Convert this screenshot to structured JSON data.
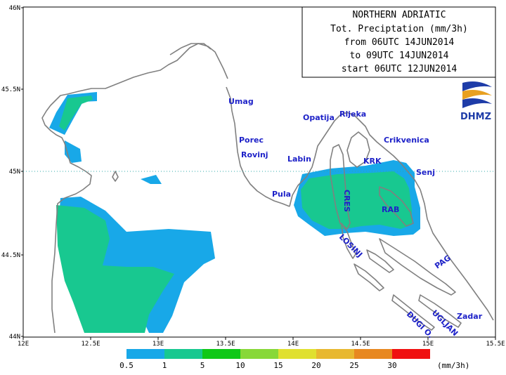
{
  "map": {
    "title_lines": [
      "NORTHERN ADRIATIC",
      "Tot. Preciptation (mm/3h)",
      "from 06UTC 14JUN2014",
      "to 09UTC 14JUN2014",
      "start 06UTC 12JUN2014"
    ],
    "logo_text": "DHMZ",
    "lat_ticks": [
      "46N",
      "45.5N",
      "45N",
      "44.5N",
      "44N"
    ],
    "lon_ticks": [
      "12E",
      "12.5E",
      "13E",
      "13.5E",
      "14E",
      "14.5E",
      "15E",
      "15.5E"
    ],
    "places": [
      {
        "id": "umag",
        "name": "Umag",
        "color": "#1e22c8"
      },
      {
        "id": "porec",
        "name": "Porec",
        "color": "#1e22c8"
      },
      {
        "id": "rovinj",
        "name": "Rovinj",
        "color": "#1e22c8"
      },
      {
        "id": "pula",
        "name": "Pula",
        "color": "#1e22c8"
      },
      {
        "id": "labin",
        "name": "Labin",
        "color": "#1e22c8"
      },
      {
        "id": "opatija",
        "name": "Opatija",
        "color": "#1e22c8"
      },
      {
        "id": "rijeka",
        "name": "Rijeka",
        "color": "#1e22c8"
      },
      {
        "id": "crikvenica",
        "name": "Crikvenica",
        "color": "#1e22c8"
      },
      {
        "id": "krk",
        "name": "KRK",
        "color": "#1e22c8"
      },
      {
        "id": "senj",
        "name": "Senj",
        "color": "#1e22c8"
      },
      {
        "id": "cres",
        "name": "CRES",
        "color": "#1e22c8"
      },
      {
        "id": "rab",
        "name": "RAB",
        "color": "#1e22c8"
      },
      {
        "id": "losinj",
        "name": "LOSINJ",
        "color": "#1e22c8"
      },
      {
        "id": "pag",
        "name": "PAG",
        "color": "#1e22c8"
      },
      {
        "id": "ugljan",
        "name": "UGLJAN",
        "color": "#1e22c8"
      },
      {
        "id": "dugi-o",
        "name": "DUGI O.",
        "color": "#1e22c8"
      },
      {
        "id": "zadar",
        "name": "Zadar",
        "color": "#1e22c8"
      }
    ],
    "legend": {
      "labels": [
        "0.5",
        "1",
        "5",
        "10",
        "15",
        "20",
        "25",
        "30"
      ],
      "unit": "(mm/3h)",
      "colors": [
        "#18a8e8",
        "#18c890",
        "#10c818",
        "#88d838",
        "#e0e030",
        "#e8b830",
        "#e88820",
        "#f01010"
      ]
    },
    "colors": {
      "coast": "#808080",
      "grid": "#30a8a8",
      "precip_low": "#18a8e8",
      "precip_mid": "#18c890"
    }
  }
}
